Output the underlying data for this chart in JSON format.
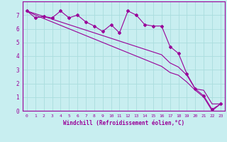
{
  "xlabel": "Windchill (Refroidissement éolien,°C)",
  "background_color": "#c8eef0",
  "line_color": "#990099",
  "grid_color": "#aadddd",
  "x": [
    0,
    1,
    2,
    3,
    4,
    5,
    6,
    7,
    8,
    9,
    10,
    11,
    12,
    13,
    14,
    15,
    16,
    17,
    18,
    19,
    20,
    21,
    22,
    23
  ],
  "y_jagged": [
    7.3,
    6.8,
    6.9,
    6.8,
    7.3,
    6.8,
    7.0,
    6.5,
    6.2,
    5.8,
    6.3,
    5.7,
    7.3,
    7.0,
    6.3,
    6.2,
    6.2,
    4.7,
    4.2,
    2.7,
    1.6,
    1.1,
    0.1,
    0.5
  ],
  "y_line1": [
    7.3,
    7.1,
    6.9,
    6.7,
    6.5,
    6.3,
    6.1,
    5.9,
    5.7,
    5.5,
    5.3,
    5.1,
    4.9,
    4.7,
    4.5,
    4.3,
    4.1,
    3.5,
    3.2,
    2.6,
    1.6,
    1.5,
    0.5,
    0.5
  ],
  "y_line2": [
    7.3,
    7.0,
    6.75,
    6.5,
    6.25,
    6.0,
    5.75,
    5.5,
    5.25,
    5.0,
    4.75,
    4.5,
    4.25,
    4.0,
    3.75,
    3.5,
    3.25,
    2.8,
    2.6,
    2.1,
    1.5,
    1.0,
    0.0,
    0.5
  ],
  "ylim": [
    0,
    8
  ],
  "xlim": [
    -0.5,
    23.5
  ],
  "yticks": [
    0,
    1,
    2,
    3,
    4,
    5,
    6,
    7
  ],
  "xticks": [
    0,
    1,
    2,
    3,
    4,
    5,
    6,
    7,
    8,
    9,
    10,
    11,
    12,
    13,
    14,
    15,
    16,
    17,
    18,
    19,
    20,
    21,
    22,
    23
  ]
}
